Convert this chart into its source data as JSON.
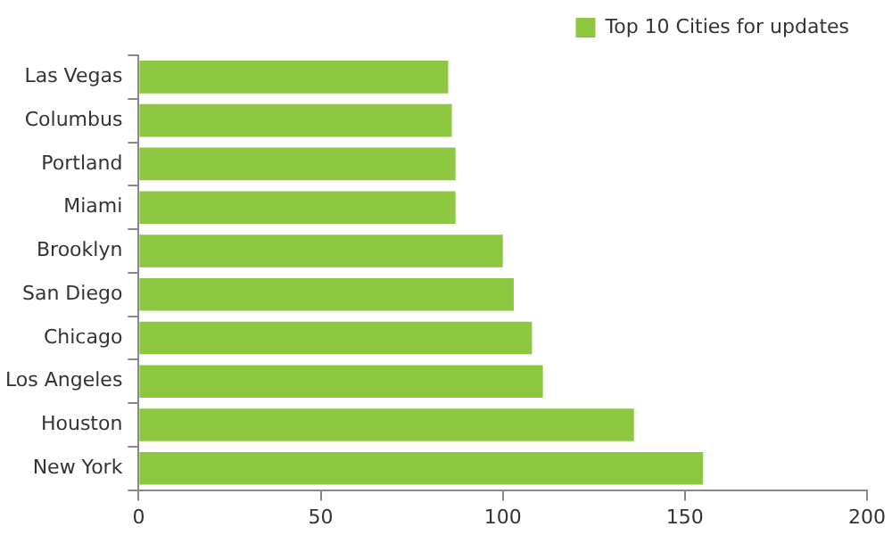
{
  "chart_data": {
    "type": "bar",
    "orientation": "horizontal",
    "categories": [
      "Las Vegas",
      "Columbus",
      "Portland",
      "Miami",
      "Brooklyn",
      "San Diego",
      "Chicago",
      "Los Angeles",
      "Houston",
      "New York"
    ],
    "series": [
      {
        "name": "Top 10 Cities for updates",
        "color": "#8dc63f",
        "values": [
          85,
          86,
          87,
          87,
          100,
          103,
          108,
          111,
          136,
          155
        ]
      }
    ],
    "xlim": [
      0,
      200
    ],
    "xticks": [
      0,
      50,
      100,
      150,
      200
    ],
    "grid": false,
    "legend": "top right"
  }
}
